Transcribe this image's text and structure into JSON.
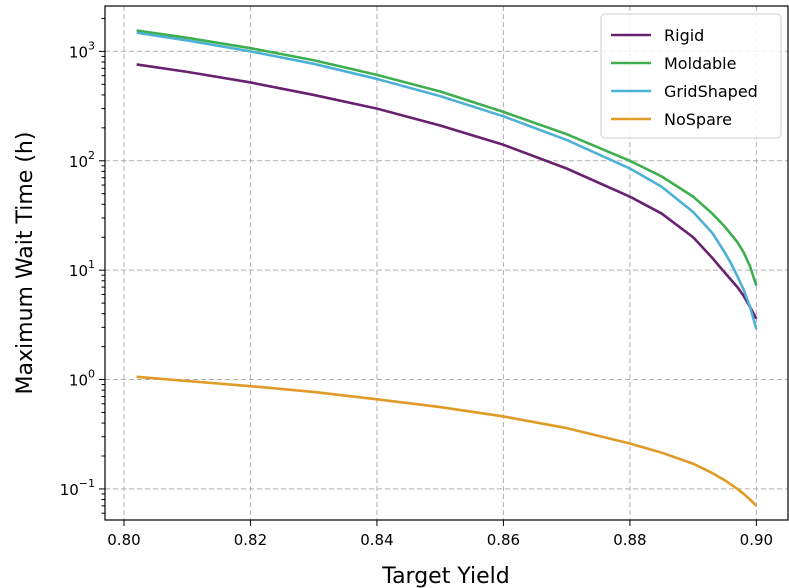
{
  "chart_data": {
    "type": "line",
    "title": "",
    "xlabel": "Target Yield",
    "ylabel": "Maximum Wait Time (h)",
    "xlim": [
      0.797,
      0.905
    ],
    "ylim": [
      0.052,
      2600
    ],
    "yscale": "log",
    "grid": true,
    "legend_position": "top-right",
    "x_ticks": [
      {
        "value": 0.8,
        "label": "0.80"
      },
      {
        "value": 0.82,
        "label": "0.82"
      },
      {
        "value": 0.84,
        "label": "0.84"
      },
      {
        "value": 0.86,
        "label": "0.86"
      },
      {
        "value": 0.88,
        "label": "0.88"
      },
      {
        "value": 0.9,
        "label": "0.90"
      }
    ],
    "y_ticks": [
      {
        "value": 0.1,
        "base": "10",
        "exp": "−1"
      },
      {
        "value": 1,
        "base": "10",
        "exp": "0"
      },
      {
        "value": 10,
        "base": "10",
        "exp": "1"
      },
      {
        "value": 100,
        "base": "10",
        "exp": "2"
      },
      {
        "value": 1000,
        "base": "10",
        "exp": "3"
      }
    ],
    "series": [
      {
        "name": "Rigid",
        "color": "#68216e",
        "points": [
          [
            0.802,
            760
          ],
          [
            0.81,
            650
          ],
          [
            0.82,
            520
          ],
          [
            0.83,
            400
          ],
          [
            0.84,
            300
          ],
          [
            0.85,
            210
          ],
          [
            0.86,
            140
          ],
          [
            0.87,
            85
          ],
          [
            0.88,
            47
          ],
          [
            0.885,
            33
          ],
          [
            0.89,
            20
          ],
          [
            0.893,
            13
          ],
          [
            0.895,
            9.5
          ],
          [
            0.897,
            7
          ],
          [
            0.898,
            5.8
          ],
          [
            0.899,
            4.6
          ],
          [
            0.9,
            3.6
          ]
        ]
      },
      {
        "name": "Moldable",
        "color": "#3fae4f",
        "points": [
          [
            0.802,
            1550
          ],
          [
            0.81,
            1330
          ],
          [
            0.82,
            1070
          ],
          [
            0.83,
            830
          ],
          [
            0.84,
            610
          ],
          [
            0.85,
            430
          ],
          [
            0.86,
            280
          ],
          [
            0.87,
            175
          ],
          [
            0.88,
            100
          ],
          [
            0.885,
            72
          ],
          [
            0.89,
            47
          ],
          [
            0.893,
            33
          ],
          [
            0.895,
            25
          ],
          [
            0.897,
            18
          ],
          [
            0.898,
            14.5
          ],
          [
            0.899,
            10.8
          ],
          [
            0.9,
            7.2
          ]
        ]
      },
      {
        "name": "GridShaped",
        "color": "#4db1d6",
        "points": [
          [
            0.802,
            1480
          ],
          [
            0.81,
            1260
          ],
          [
            0.82,
            1000
          ],
          [
            0.83,
            770
          ],
          [
            0.84,
            560
          ],
          [
            0.85,
            390
          ],
          [
            0.86,
            255
          ],
          [
            0.87,
            155
          ],
          [
            0.88,
            85
          ],
          [
            0.885,
            58
          ],
          [
            0.89,
            34
          ],
          [
            0.893,
            22
          ],
          [
            0.895,
            14.5
          ],
          [
            0.896,
            11.5
          ],
          [
            0.897,
            8.8
          ],
          [
            0.898,
            6.6
          ],
          [
            0.899,
            4.6
          ],
          [
            0.9,
            2.9
          ]
        ]
      },
      {
        "name": "NoSpare",
        "color": "#e09a26",
        "points": [
          [
            0.802,
            1.06
          ],
          [
            0.81,
            0.97
          ],
          [
            0.82,
            0.87
          ],
          [
            0.83,
            0.77
          ],
          [
            0.84,
            0.66
          ],
          [
            0.85,
            0.56
          ],
          [
            0.86,
            0.46
          ],
          [
            0.87,
            0.36
          ],
          [
            0.88,
            0.26
          ],
          [
            0.885,
            0.215
          ],
          [
            0.89,
            0.17
          ],
          [
            0.893,
            0.14
          ],
          [
            0.895,
            0.12
          ],
          [
            0.897,
            0.1
          ],
          [
            0.898,
            0.09
          ],
          [
            0.899,
            0.08
          ],
          [
            0.9,
            0.07
          ]
        ]
      }
    ]
  }
}
